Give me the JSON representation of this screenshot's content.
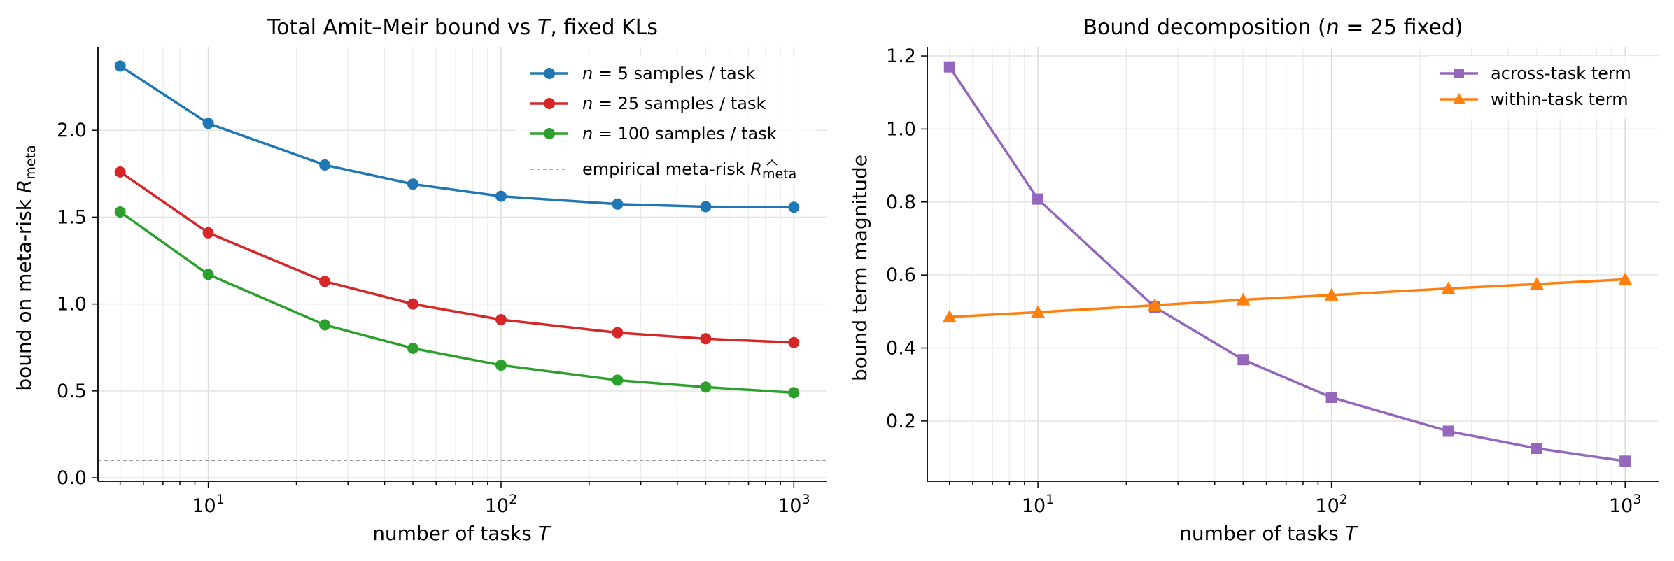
{
  "chart_data": [
    {
      "type": "line",
      "title": "Total Amit–Meir bound vs T, fixed KLs",
      "title_parts": {
        "prefix": "Total Amit–Meir bound vs ",
        "var": "T",
        "suffix": ", fixed KLs"
      },
      "xlabel": "number of tasks T",
      "xlabel_parts": {
        "prefix": "number of tasks ",
        "var": "T"
      },
      "ylabel": "bound on meta-risk R_meta",
      "ylabel_parts": {
        "prefix": "bound on meta-risk ",
        "var": "R",
        "sub": "meta"
      },
      "x_scale": "log",
      "xlim": [
        4.2,
        1300
      ],
      "ylim": [
        -0.02,
        2.48
      ],
      "x_ticks": [
        10,
        100,
        1000
      ],
      "x_tick_labels": [
        {
          "base": "10",
          "exp": "1"
        },
        {
          "base": "10",
          "exp": "2"
        },
        {
          "base": "10",
          "exp": "3"
        }
      ],
      "y_ticks": [
        0.0,
        0.5,
        1.0,
        1.5,
        2.0
      ],
      "y_tick_labels": [
        "0.0",
        "0.5",
        "1.0",
        "1.5",
        "2.0"
      ],
      "grid": true,
      "legend_position": "top-right",
      "x": [
        5,
        10,
        25,
        50,
        100,
        250,
        500,
        1000
      ],
      "series": [
        {
          "name": "n = 5 samples / task",
          "legend_var": "n",
          "legend_rest": " = 5 samples / task",
          "color": "#1f77b4",
          "marker": "circle",
          "values": [
            2.37,
            2.04,
            1.8,
            1.69,
            1.62,
            1.575,
            1.56,
            1.557
          ]
        },
        {
          "name": "n = 25 samples / task",
          "legend_var": "n",
          "legend_rest": " = 25 samples / task",
          "color": "#d62728",
          "marker": "circle",
          "values": [
            1.76,
            1.41,
            1.13,
            1.0,
            0.91,
            0.835,
            0.8,
            0.778
          ]
        },
        {
          "name": "n = 100 samples / task",
          "legend_var": "n",
          "legend_rest": " = 100 samples / task",
          "color": "#2ca02c",
          "marker": "circle",
          "values": [
            1.53,
            1.17,
            0.88,
            0.745,
            0.648,
            0.562,
            0.522,
            0.49
          ]
        }
      ],
      "reference_line": {
        "name": "empirical meta-risk R_meta",
        "legend_prefix": "empirical meta-risk ",
        "legend_var": "R",
        "legend_sub": "meta",
        "y": 0.1,
        "color": "#999999",
        "style": "dashed"
      }
    },
    {
      "type": "line",
      "title": "Bound decomposition (n = 25 fixed)",
      "title_parts": {
        "prefix": "Bound decomposition (",
        "var": "n",
        "suffix": " = 25 fixed)"
      },
      "xlabel": "number of tasks T",
      "xlabel_parts": {
        "prefix": "number of tasks ",
        "var": "T"
      },
      "ylabel": "bound term magnitude",
      "x_scale": "log",
      "xlim": [
        4.2,
        1300
      ],
      "ylim": [
        0.035,
        1.225
      ],
      "x_ticks": [
        10,
        100,
        1000
      ],
      "x_tick_labels": [
        {
          "base": "10",
          "exp": "1"
        },
        {
          "base": "10",
          "exp": "2"
        },
        {
          "base": "10",
          "exp": "3"
        }
      ],
      "y_ticks": [
        0.2,
        0.4,
        0.6,
        0.8,
        1.0,
        1.2
      ],
      "y_tick_labels": [
        "0.2",
        "0.4",
        "0.6",
        "0.8",
        "1.0",
        "1.2"
      ],
      "grid": true,
      "legend_position": "top-right",
      "x": [
        5,
        10,
        25,
        50,
        100,
        250,
        500,
        1000
      ],
      "series": [
        {
          "name": "across-task term",
          "color": "#9467bd",
          "marker": "square",
          "values": [
            1.17,
            0.808,
            0.512,
            0.368,
            0.265,
            0.172,
            0.125,
            0.09
          ]
        },
        {
          "name": "within-task term",
          "color": "#ff7f0e",
          "marker": "triangle",
          "values": [
            0.485,
            0.498,
            0.517,
            0.532,
            0.545,
            0.563,
            0.575,
            0.588
          ]
        }
      ]
    }
  ]
}
